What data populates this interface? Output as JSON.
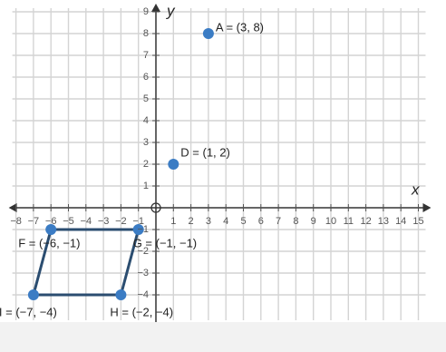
{
  "chart_data": {
    "type": "scatter",
    "xlabel": "x",
    "ylabel": "y",
    "xlim": [
      -8,
      15
    ],
    "ylim": [
      -5,
      9
    ],
    "xticks": [
      {
        "value": -8,
        "label": "−8"
      },
      {
        "value": -7,
        "label": "−7"
      },
      {
        "value": -6,
        "label": "−6"
      },
      {
        "value": -5,
        "label": "−5"
      },
      {
        "value": -4,
        "label": "−4"
      },
      {
        "value": -3,
        "label": "−3"
      },
      {
        "value": -2,
        "label": "−2"
      },
      {
        "value": -1,
        "label": "−1"
      },
      1,
      2,
      3,
      4,
      5,
      6,
      7,
      8,
      9,
      10,
      11,
      12,
      13,
      14,
      15
    ],
    "yticks": [
      {
        "value": -4,
        "label": "−4"
      },
      {
        "value": -3,
        "label": "−3"
      },
      {
        "value": -2,
        "label": "−2"
      },
      {
        "value": -1,
        "label": "−1"
      },
      1,
      2,
      3,
      4,
      5,
      6,
      7,
      8,
      9
    ],
    "grid": true,
    "points": {
      "color": "#3b7cc4",
      "x": [
        3,
        1,
        -6,
        -1,
        -2,
        -7
      ],
      "y": [
        8,
        2,
        -1,
        -1,
        -4,
        -4
      ],
      "labels": [
        "A = (3, 8)",
        "D = (1, 2)",
        "F = (−6, −1)",
        "G = (−1, −1)",
        "H = (−2, −4)",
        "I = (−7, −4)"
      ]
    },
    "shape": {
      "color": "#2b4d70",
      "x": [
        -6,
        -1,
        -2,
        -7
      ],
      "y": [
        -1,
        -1,
        -4,
        -4
      ]
    }
  }
}
